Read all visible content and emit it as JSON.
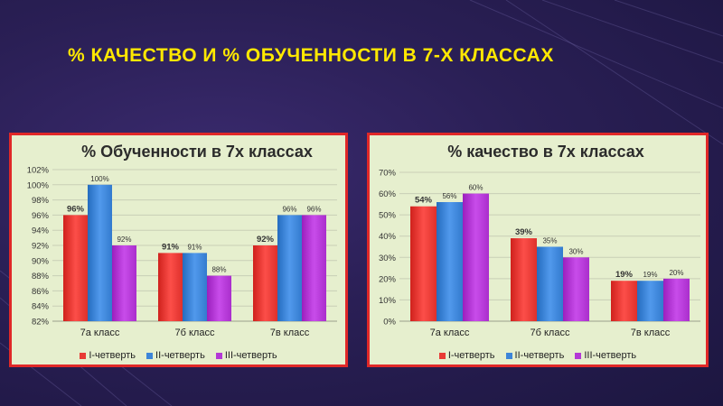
{
  "slide": {
    "title": "% КАЧЕСТВО И % ОБУЧЕННОСТИ В 7-Х КЛАССАХ"
  },
  "colors": {
    "series": [
      "#e83a35",
      "#3d85d8",
      "#b438d6"
    ]
  },
  "chart_data": [
    {
      "type": "bar",
      "title": "% Обученности в 7х классах",
      "categories": [
        "7а класс",
        "7б класс",
        "7в класс"
      ],
      "series": [
        {
          "name": "I-четверть",
          "values": [
            96,
            91,
            92
          ],
          "labels": [
            "96%",
            "91%",
            "92%"
          ]
        },
        {
          "name": "II-четверть",
          "values": [
            100,
            91,
            96
          ],
          "labels": [
            "100%",
            "91%",
            "96%"
          ]
        },
        {
          "name": "III-четверть",
          "values": [
            92,
            88,
            96
          ],
          "labels": [
            "92%",
            "88%",
            "96%"
          ]
        }
      ],
      "ylim": [
        82,
        102
      ],
      "yticks": [
        82,
        84,
        86,
        88,
        90,
        92,
        94,
        96,
        98,
        100,
        102
      ],
      "ytick_labels": [
        "82%",
        "84%",
        "86%",
        "88%",
        "90%",
        "92%",
        "94%",
        "96%",
        "98%",
        "100%",
        "102%"
      ],
      "xlabel": "",
      "ylabel": "",
      "grid": true,
      "legend": "bottom"
    },
    {
      "type": "bar",
      "title": "% качество в 7х классах",
      "categories": [
        "7а класс",
        "7б класс",
        "7в класс"
      ],
      "series": [
        {
          "name": "I-четверть",
          "values": [
            54,
            39,
            19
          ],
          "labels": [
            "54%",
            "39%",
            "19%"
          ]
        },
        {
          "name": "II-четверть",
          "values": [
            56,
            35,
            19
          ],
          "labels": [
            "56%",
            "35%",
            "19%"
          ]
        },
        {
          "name": "III-четверть",
          "values": [
            60,
            30,
            20
          ],
          "labels": [
            "60%",
            "30%",
            "20%"
          ]
        }
      ],
      "ylim": [
        0,
        70
      ],
      "yticks": [
        0,
        10,
        20,
        30,
        40,
        50,
        60,
        70
      ],
      "ytick_labels": [
        "0%",
        "10%",
        "20%",
        "30%",
        "40%",
        "50%",
        "60%",
        "70%"
      ],
      "xlabel": "",
      "ylabel": "",
      "grid": true,
      "legend": "bottom"
    }
  ]
}
